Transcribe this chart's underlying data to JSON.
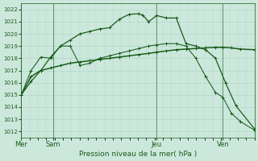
{
  "bg_color": "#cce8dc",
  "line_color": "#1a5c1a",
  "grid_color": "#b0d8c8",
  "xlabel": "Pression niveau de la mer( hPa )",
  "ylim": [
    1011.5,
    1022.5
  ],
  "yticks": [
    1012,
    1013,
    1014,
    1015,
    1016,
    1017,
    1018,
    1019,
    1020,
    1021,
    1022
  ],
  "day_labels": [
    "Mer",
    "Sam",
    "Jeu",
    "Ven"
  ],
  "day_positions": [
    0.0,
    0.136,
    0.58,
    0.864
  ],
  "n_points": 25,
  "line1_x": [
    0.0,
    0.042,
    0.084,
    0.126,
    0.168,
    0.21,
    0.252,
    0.294,
    0.336,
    0.378,
    0.42,
    0.462,
    0.504,
    0.52,
    0.546,
    0.58,
    0.622,
    0.664,
    0.706,
    0.748,
    0.79,
    0.832,
    0.875,
    0.92,
    1.0
  ],
  "line1_y": [
    1015.0,
    1016.1,
    1017.0,
    1018.1,
    1019.0,
    1019.5,
    1020.0,
    1020.2,
    1020.4,
    1020.5,
    1021.2,
    1021.6,
    1021.65,
    1021.55,
    1021.0,
    1021.5,
    1021.3,
    1021.3,
    1019.2,
    1019.0,
    1018.7,
    1018.0,
    1016.0,
    1014.1,
    1012.2
  ],
  "line2_x": [
    0.0,
    0.042,
    0.084,
    0.126,
    0.168,
    0.21,
    0.252,
    0.294,
    0.336,
    0.378,
    0.42,
    0.462,
    0.504,
    0.546,
    0.58,
    0.622,
    0.664,
    0.706,
    0.748,
    0.79,
    0.832,
    0.864,
    0.9,
    0.94,
    1.0
  ],
  "line2_y": [
    1015.0,
    1016.5,
    1017.0,
    1017.2,
    1017.4,
    1017.6,
    1017.7,
    1017.8,
    1017.9,
    1018.0,
    1018.1,
    1018.2,
    1018.3,
    1018.4,
    1018.5,
    1018.6,
    1018.7,
    1018.75,
    1018.8,
    1018.85,
    1018.9,
    1018.9,
    1018.85,
    1018.75,
    1018.7
  ],
  "line3_x": [
    0.0,
    0.042,
    0.084,
    0.126,
    0.168,
    0.21,
    0.252,
    0.294,
    0.336,
    0.378,
    0.42,
    0.462,
    0.504,
    0.546,
    0.58,
    0.622,
    0.664,
    0.706,
    0.748,
    0.79,
    0.832,
    0.864,
    0.9,
    0.94,
    1.0
  ],
  "line3_y": [
    1015.0,
    1017.0,
    1018.1,
    1018.0,
    1019.0,
    1019.0,
    1017.4,
    1017.6,
    1018.0,
    1018.2,
    1018.4,
    1018.6,
    1018.8,
    1019.0,
    1019.1,
    1019.2,
    1019.2,
    1019.0,
    1018.0,
    1016.5,
    1015.2,
    1014.8,
    1013.5,
    1012.8,
    1012.1
  ]
}
